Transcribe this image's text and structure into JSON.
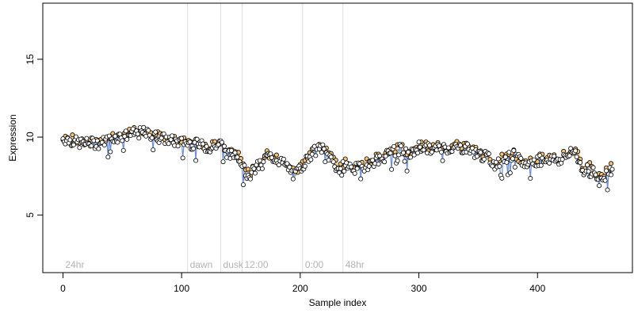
{
  "chart_data": {
    "type": "scatter",
    "title": "",
    "xlabel": "Sample index",
    "ylabel": "Expression",
    "xlim": [
      -17,
      480
    ],
    "ylim": [
      1.3,
      18.6
    ],
    "x_ticks": [
      0,
      100,
      200,
      300,
      400
    ],
    "y_ticks": [
      5,
      10,
      15
    ],
    "grid": false,
    "legend": "none",
    "colors": {
      "point_fill_a": "#ffffff",
      "point_fill_b": "#f5c27a",
      "line_a": "#6b8fd6",
      "line_b": "#f0a030",
      "trend": "#b0b0b0",
      "divider": "#dddddd",
      "region_label": "#b3b3b3"
    },
    "regions": [
      {
        "label": "24hr",
        "x_start": 0,
        "x_end": 105
      },
      {
        "label": "dawn",
        "x_start": 105,
        "x_end": 133
      },
      {
        "label": "dusk",
        "x_start": 133,
        "x_end": 151
      },
      {
        "label": "12:00",
        "x_start": 151,
        "x_end": 202
      },
      {
        "label": "0:00",
        "x_start": 202,
        "x_end": 236
      },
      {
        "label": "48hr",
        "x_start": 236,
        "x_end": 470
      }
    ],
    "dividers": [
      105,
      133,
      151,
      202,
      236
    ],
    "anchors": {
      "x": [
        0,
        15,
        30,
        45,
        60,
        68,
        80,
        95,
        105,
        115,
        125,
        133,
        140,
        147,
        152,
        158,
        165,
        172,
        180,
        188,
        195,
        202,
        210,
        218,
        226,
        232,
        238,
        245,
        252,
        260,
        268,
        276,
        284,
        292,
        300,
        310,
        320,
        330,
        340,
        350,
        358,
        365,
        372,
        380,
        390,
        400,
        410,
        418,
        425,
        432,
        438,
        444,
        450,
        455,
        460,
        464
      ],
      "y": [
        9.9,
        9.6,
        9.6,
        10.0,
        10.2,
        10.3,
        10.0,
        9.7,
        9.6,
        9.5,
        9.3,
        9.6,
        8.8,
        9.0,
        8.0,
        7.6,
        8.2,
        8.8,
        8.6,
        8.2,
        7.5,
        8.2,
        9.0,
        9.3,
        8.6,
        7.9,
        8.2,
        8.0,
        8.0,
        8.4,
        8.6,
        9.0,
        9.2,
        8.8,
        9.4,
        9.2,
        9.3,
        9.3,
        9.3,
        8.9,
        8.7,
        8.2,
        8.6,
        8.8,
        8.2,
        8.5,
        8.6,
        8.5,
        8.8,
        9.1,
        7.8,
        8.2,
        7.3,
        7.4,
        7.8,
        8.0
      ]
    },
    "n_samples": 464,
    "noise": 0.35,
    "seed": 7
  }
}
